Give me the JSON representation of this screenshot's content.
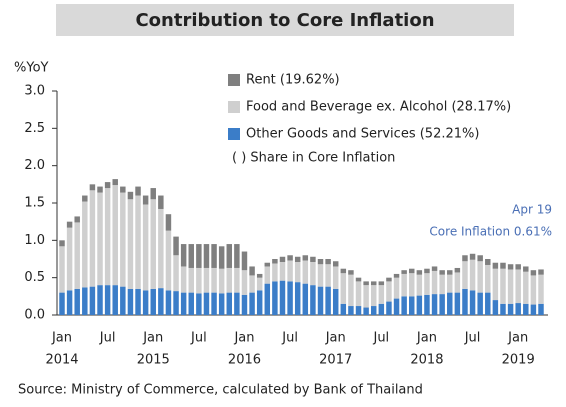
{
  "chart_data": {
    "type": "stacked_bar",
    "title": "Contribution to Core Inflation",
    "y_label": "%YoY",
    "source": "Source: Ministry of Commerce, calculated by Bank of Thailand",
    "annotations": [
      "( ) Share in Core Inflation",
      "Apr 19",
      "Core Inflation 0.61%"
    ],
    "categories": [
      "Jan",
      null,
      null,
      null,
      null,
      null,
      "Jul",
      null,
      null,
      null,
      null,
      null,
      "Jan",
      null,
      null,
      null,
      null,
      null,
      "Jul",
      null,
      null,
      null,
      null,
      null,
      "Jan",
      null,
      null,
      null,
      null,
      null,
      "Jul",
      null,
      null,
      null,
      null,
      null,
      "Jan",
      null,
      null,
      null,
      null,
      null,
      "Jul",
      null,
      null,
      null,
      null,
      null,
      "Jan",
      null,
      null,
      null,
      null,
      null,
      "Jul",
      null,
      null,
      null,
      null,
      null,
      "Jan",
      null,
      null,
      null
    ],
    "years": [
      "2014",
      "2015",
      "2016",
      "2017",
      "2018",
      "2019"
    ],
    "series": [
      {
        "name": "Other Goods and Services (52.21%)",
        "color": "#3b7dc8",
        "values": [
          0.3,
          0.33,
          0.35,
          0.37,
          0.38,
          0.4,
          0.4,
          0.4,
          0.38,
          0.35,
          0.35,
          0.33,
          0.35,
          0.36,
          0.33,
          0.32,
          0.3,
          0.3,
          0.29,
          0.3,
          0.3,
          0.29,
          0.3,
          0.3,
          0.27,
          0.3,
          0.33,
          0.42,
          0.45,
          0.46,
          0.45,
          0.44,
          0.42,
          0.4,
          0.38,
          0.38,
          0.35,
          0.15,
          0.12,
          0.12,
          0.1,
          0.12,
          0.15,
          0.18,
          0.22,
          0.25,
          0.25,
          0.26,
          0.27,
          0.28,
          0.28,
          0.3,
          0.3,
          0.35,
          0.33,
          0.3,
          0.3,
          0.2,
          0.15,
          0.15,
          0.16,
          0.15,
          0.14,
          0.15
        ]
      },
      {
        "name": "Food and Beverage ex. Alcohol  (28.17%)",
        "color": "#cfcfcf",
        "values": [
          0.62,
          0.84,
          0.89,
          1.15,
          1.29,
          1.24,
          1.3,
          1.34,
          1.26,
          1.2,
          1.25,
          1.15,
          1.2,
          1.06,
          0.8,
          0.48,
          0.35,
          0.33,
          0.34,
          0.33,
          0.33,
          0.33,
          0.33,
          0.33,
          0.33,
          0.23,
          0.17,
          0.23,
          0.24,
          0.25,
          0.28,
          0.27,
          0.31,
          0.31,
          0.3,
          0.3,
          0.3,
          0.41,
          0.42,
          0.33,
          0.3,
          0.28,
          0.25,
          0.27,
          0.28,
          0.3,
          0.31,
          0.28,
          0.29,
          0.31,
          0.26,
          0.24,
          0.27,
          0.37,
          0.41,
          0.42,
          0.37,
          0.42,
          0.47,
          0.46,
          0.45,
          0.43,
          0.39,
          0.39
        ]
      },
      {
        "name": "Rent (19.62%)",
        "color": "#7f7f7f",
        "values": [
          0.08,
          0.08,
          0.08,
          0.08,
          0.08,
          0.08,
          0.08,
          0.08,
          0.08,
          0.1,
          0.12,
          0.12,
          0.15,
          0.18,
          0.22,
          0.25,
          0.3,
          0.32,
          0.32,
          0.32,
          0.32,
          0.3,
          0.32,
          0.32,
          0.25,
          0.12,
          0.05,
          0.05,
          0.06,
          0.07,
          0.07,
          0.07,
          0.07,
          0.07,
          0.07,
          0.07,
          0.07,
          0.06,
          0.06,
          0.05,
          0.05,
          0.05,
          0.05,
          0.05,
          0.05,
          0.05,
          0.06,
          0.06,
          0.06,
          0.06,
          0.06,
          0.06,
          0.06,
          0.08,
          0.08,
          0.08,
          0.08,
          0.08,
          0.08,
          0.07,
          0.07,
          0.07,
          0.07,
          0.07
        ]
      }
    ],
    "ylim": [
      0,
      3
    ],
    "yticks": [
      {
        "value": 0,
        "label": "0.0"
      },
      0.5,
      {
        "value": 1,
        "label": "1.0"
      },
      1.5,
      {
        "value": 2,
        "label": "2.0"
      },
      2.5,
      {
        "value": 3,
        "label": "3.0"
      }
    ]
  }
}
